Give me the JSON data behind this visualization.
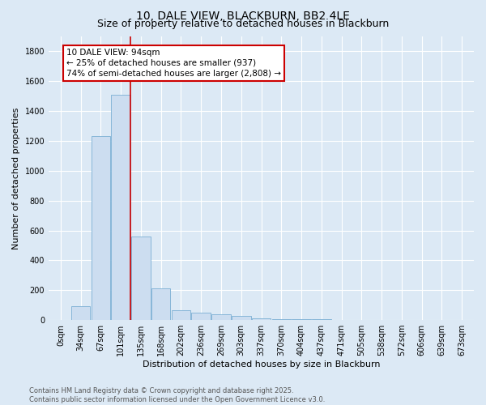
{
  "title": "10, DALE VIEW, BLACKBURN, BB2 4LE",
  "subtitle": "Size of property relative to detached houses in Blackburn",
  "xlabel": "Distribution of detached houses by size in Blackburn",
  "ylabel": "Number of detached properties",
  "bar_color": "#ccddf0",
  "bar_edge_color": "#7bafd4",
  "bg_color": "#dce9f5",
  "fig_color": "#dce9f5",
  "grid_color": "#ffffff",
  "annotation_line_color": "#cc0000",
  "annotation_box_color": "#cc0000",
  "categories": [
    "0sqm",
    "34sqm",
    "67sqm",
    "101sqm",
    "135sqm",
    "168sqm",
    "202sqm",
    "236sqm",
    "269sqm",
    "303sqm",
    "337sqm",
    "370sqm",
    "404sqm",
    "437sqm",
    "471sqm",
    "505sqm",
    "538sqm",
    "572sqm",
    "606sqm",
    "639sqm",
    "673sqm"
  ],
  "values": [
    0,
    95,
    1230,
    1510,
    560,
    210,
    65,
    50,
    40,
    30,
    10,
    5,
    5,
    5,
    3,
    0,
    0,
    0,
    0,
    0,
    0
  ],
  "annotation_text": "10 DALE VIEW: 94sqm\n← 25% of detached houses are smaller (937)\n74% of semi-detached houses are larger (2,808) →",
  "ylim": [
    0,
    1900
  ],
  "yticks": [
    0,
    200,
    400,
    600,
    800,
    1000,
    1200,
    1400,
    1600,
    1800
  ],
  "vline_x_idx": 3,
  "footer_text": "Contains HM Land Registry data © Crown copyright and database right 2025.\nContains public sector information licensed under the Open Government Licence v3.0.",
  "title_fontsize": 10,
  "subtitle_fontsize": 9,
  "axis_label_fontsize": 8,
  "tick_fontsize": 7,
  "annotation_fontsize": 7.5,
  "footer_fontsize": 6
}
